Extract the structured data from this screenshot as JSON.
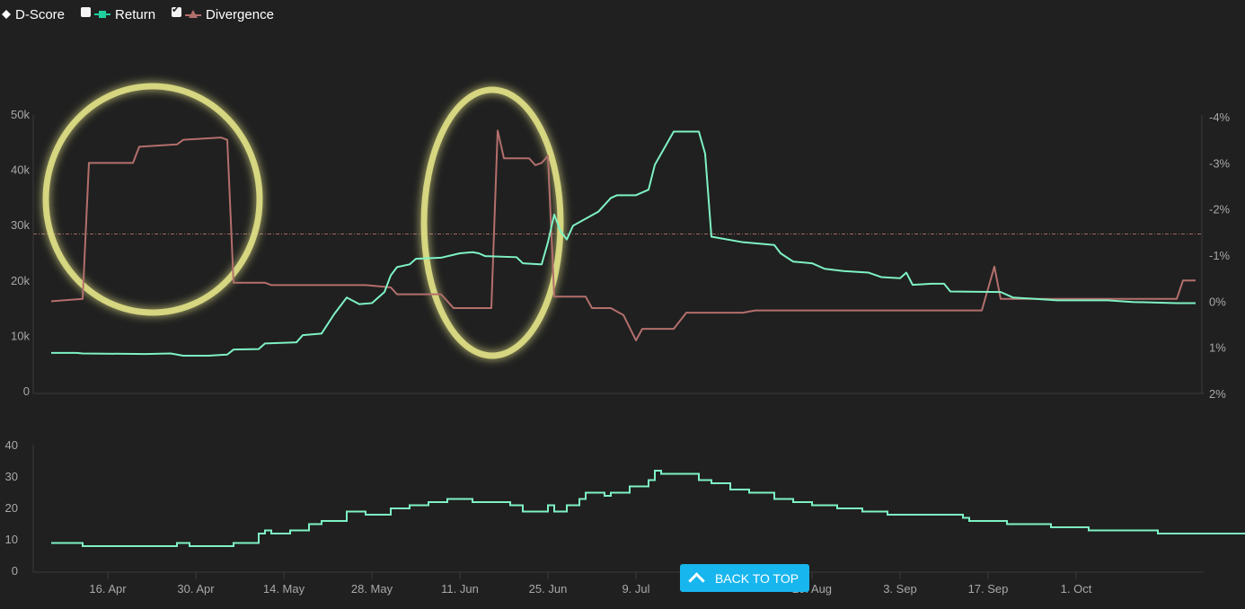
{
  "legend": {
    "dscore_label": "D-Score",
    "return_label": "Return",
    "divergence_label": "Divergence",
    "return_checked": false,
    "divergence_checked": true
  },
  "back_to_top_label": "BACK TO TOP",
  "colors": {
    "background": "#202020",
    "return": "#7ef2c4",
    "divergence": "#b36f6c",
    "axis_text": "#a8a8a8",
    "highlight": "#e8e88a",
    "button": "#18b6ee"
  },
  "chart_data": [
    {
      "type": "line",
      "title": "",
      "left_axis": {
        "ticks": [
          "0",
          "10k",
          "20k",
          "30k",
          "40k",
          "50k"
        ],
        "range": [
          0,
          50000
        ]
      },
      "right_axis": {
        "ticks": [
          "2%",
          "1%",
          "0%",
          "-1%",
          "-2%",
          "-3%",
          "-4%"
        ],
        "range": [
          2,
          -4
        ],
        "reversed": true
      },
      "x_ticks": [
        "16. Apr",
        "30. Apr",
        "14. May",
        "28. May",
        "11. Jun",
        "25. Jun",
        "9. Jul",
        "",
        "20. Aug",
        "3. Sep",
        "17. Sep",
        "1. Oct"
      ],
      "reference_line": {
        "axis": "left",
        "value": 28500,
        "style": "dash-dot"
      },
      "series": [
        {
          "name": "Return",
          "axis": "left",
          "color": "#7ef2c4",
          "points": [
            [
              "2018-04-07",
              7000
            ],
            [
              "2018-04-11",
              7000
            ],
            [
              "2018-04-12",
              6900
            ],
            [
              "2018-04-22",
              6800
            ],
            [
              "2018-04-26",
              6900
            ],
            [
              "2018-04-28",
              6500
            ],
            [
              "2018-05-02",
              6500
            ],
            [
              "2018-05-05",
              6700
            ],
            [
              "2018-05-06",
              7600
            ],
            [
              "2018-05-10",
              7700
            ],
            [
              "2018-05-11",
              8700
            ],
            [
              "2018-05-16",
              8900
            ],
            [
              "2018-05-17",
              10200
            ],
            [
              "2018-05-20",
              10500
            ],
            [
              "2018-05-22",
              14000
            ],
            [
              "2018-05-24",
              17000
            ],
            [
              "2018-05-26",
              15800
            ],
            [
              "2018-05-28",
              16000
            ],
            [
              "2018-05-30",
              18000
            ],
            [
              "2018-05-31",
              21000
            ],
            [
              "2018-06-01",
              22500
            ],
            [
              "2018-06-03",
              23000
            ],
            [
              "2018-06-04",
              24000
            ],
            [
              "2018-06-08",
              24200
            ],
            [
              "2018-06-11",
              25000
            ],
            [
              "2018-06-13",
              25200
            ],
            [
              "2018-06-14",
              25000
            ],
            [
              "2018-06-15",
              24500
            ],
            [
              "2018-06-20",
              24300
            ],
            [
              "2018-06-21",
              23200
            ],
            [
              "2018-06-24",
              23000
            ],
            [
              "2018-06-25",
              27000
            ],
            [
              "2018-06-26",
              32000
            ],
            [
              "2018-06-27",
              29000
            ],
            [
              "2018-06-28",
              27500
            ],
            [
              "2018-06-29",
              30000
            ],
            [
              "2018-07-03",
              32500
            ],
            [
              "2018-07-05",
              35000
            ],
            [
              "2018-07-06",
              35500
            ],
            [
              "2018-07-09",
              35500
            ],
            [
              "2018-07-11",
              36500
            ],
            [
              "2018-07-12",
              41000
            ],
            [
              "2018-07-13",
              43000
            ],
            [
              "2018-07-15",
              47000
            ],
            [
              "2018-07-19",
              47000
            ],
            [
              "2018-07-20",
              43000
            ],
            [
              "2018-07-21",
              28000
            ],
            [
              "2018-07-26",
              27000
            ],
            [
              "2018-07-31",
              26500
            ],
            [
              "2018-08-01",
              25000
            ],
            [
              "2018-08-03",
              23500
            ],
            [
              "2018-08-06",
              23200
            ],
            [
              "2018-08-08",
              22200
            ],
            [
              "2018-08-11",
              21800
            ],
            [
              "2018-08-15",
              21500
            ],
            [
              "2018-08-17",
              20700
            ],
            [
              "2018-08-20",
              20500
            ],
            [
              "2018-08-21",
              21500
            ],
            [
              "2018-08-22",
              19300
            ],
            [
              "2018-08-25",
              19500
            ],
            [
              "2018-08-27",
              19500
            ],
            [
              "2018-08-28",
              18100
            ],
            [
              "2018-09-05",
              18000
            ],
            [
              "2018-09-07",
              17000
            ],
            [
              "2018-09-10",
              16800
            ],
            [
              "2018-09-14",
              16500
            ],
            [
              "2018-09-22",
              16500
            ],
            [
              "2018-09-26",
              16200
            ],
            [
              "2018-10-03",
              16000
            ],
            [
              "2018-10-06",
              16000
            ]
          ]
        },
        {
          "name": "Divergence",
          "axis": "right",
          "color": "#b36f6c",
          "points": [
            [
              "2018-04-07",
              0.0
            ],
            [
              "2018-04-12",
              -0.05
            ],
            [
              "2018-04-13",
              -3.0
            ],
            [
              "2018-04-20",
              -3.0
            ],
            [
              "2018-04-21",
              -3.35
            ],
            [
              "2018-04-27",
              -3.4
            ],
            [
              "2018-04-28",
              -3.5
            ],
            [
              "2018-05-04",
              -3.55
            ],
            [
              "2018-05-05",
              -3.5
            ],
            [
              "2018-05-06",
              -0.4
            ],
            [
              "2018-05-11",
              -0.4
            ],
            [
              "2018-05-12",
              -0.35
            ],
            [
              "2018-05-27",
              -0.35
            ],
            [
              "2018-05-31",
              -0.3
            ],
            [
              "2018-06-01",
              -0.15
            ],
            [
              "2018-06-08",
              -0.15
            ],
            [
              "2018-06-10",
              0.15
            ],
            [
              "2018-06-16",
              0.15
            ],
            [
              "2018-06-17",
              -3.7
            ],
            [
              "2018-06-18",
              -3.1
            ],
            [
              "2018-06-22",
              -3.1
            ],
            [
              "2018-06-23",
              -2.95
            ],
            [
              "2018-06-24",
              -3.0
            ],
            [
              "2018-06-25",
              -3.15
            ],
            [
              "2018-06-26",
              -0.1
            ],
            [
              "2018-07-01",
              -0.1
            ],
            [
              "2018-07-02",
              0.15
            ],
            [
              "2018-07-05",
              0.15
            ],
            [
              "2018-07-07",
              0.3
            ],
            [
              "2018-07-09",
              0.85
            ],
            [
              "2018-07-10",
              0.6
            ],
            [
              "2018-07-15",
              0.6
            ],
            [
              "2018-07-17",
              0.25
            ],
            [
              "2018-07-26",
              0.25
            ],
            [
              "2018-07-28",
              0.2
            ],
            [
              "2018-09-02",
              0.2
            ],
            [
              "2018-09-04",
              -0.75
            ],
            [
              "2018-09-05",
              -0.05
            ],
            [
              "2018-09-10",
              -0.05
            ],
            [
              "2018-09-12",
              -0.05
            ],
            [
              "2018-10-03",
              -0.05
            ],
            [
              "2018-10-04",
              -0.45
            ],
            [
              "2018-10-06",
              -0.45
            ]
          ]
        }
      ]
    },
    {
      "type": "line",
      "title": "",
      "left_axis": {
        "ticks": [
          "0",
          "10",
          "20",
          "30",
          "40"
        ],
        "range": [
          0,
          40
        ]
      },
      "series": [
        {
          "name": "D-Score",
          "color": "#7ef2c4",
          "step": true,
          "points": [
            [
              "2018-04-07",
              9
            ],
            [
              "2018-04-12",
              8
            ],
            [
              "2018-04-27",
              9
            ],
            [
              "2018-04-29",
              8
            ],
            [
              "2018-05-06",
              9
            ],
            [
              "2018-05-10",
              12
            ],
            [
              "2018-05-11",
              13
            ],
            [
              "2018-05-12",
              12
            ],
            [
              "2018-05-15",
              13
            ],
            [
              "2018-05-18",
              15
            ],
            [
              "2018-05-20",
              16
            ],
            [
              "2018-05-24",
              19
            ],
            [
              "2018-05-27",
              18
            ],
            [
              "2018-05-31",
              20
            ],
            [
              "2018-06-03",
              21
            ],
            [
              "2018-06-06",
              22
            ],
            [
              "2018-06-09",
              23
            ],
            [
              "2018-06-13",
              22
            ],
            [
              "2018-06-19",
              21
            ],
            [
              "2018-06-21",
              19
            ],
            [
              "2018-06-25",
              21
            ],
            [
              "2018-06-26",
              19
            ],
            [
              "2018-06-28",
              21
            ],
            [
              "2018-06-30",
              23
            ],
            [
              "2018-07-01",
              25
            ],
            [
              "2018-07-04",
              24
            ],
            [
              "2018-07-05",
              25
            ],
            [
              "2018-07-08",
              27
            ],
            [
              "2018-07-11",
              29
            ],
            [
              "2018-07-12",
              32
            ],
            [
              "2018-07-13",
              31
            ],
            [
              "2018-07-19",
              29
            ],
            [
              "2018-07-21",
              28
            ],
            [
              "2018-07-24",
              26
            ],
            [
              "2018-07-27",
              25
            ],
            [
              "2018-07-31",
              23
            ],
            [
              "2018-08-03",
              22
            ],
            [
              "2018-08-06",
              21
            ],
            [
              "2018-08-10",
              20
            ],
            [
              "2018-08-14",
              19
            ],
            [
              "2018-08-18",
              18
            ],
            [
              "2018-08-30",
              17
            ],
            [
              "2018-08-31",
              16
            ],
            [
              "2018-09-06",
              15
            ],
            [
              "2018-09-13",
              14
            ],
            [
              "2018-09-19",
              13
            ],
            [
              "2018-09-30",
              12
            ],
            [
              "2018-10-14",
              10
            ],
            [
              "2018-10-16",
              10
            ]
          ]
        }
      ]
    }
  ]
}
